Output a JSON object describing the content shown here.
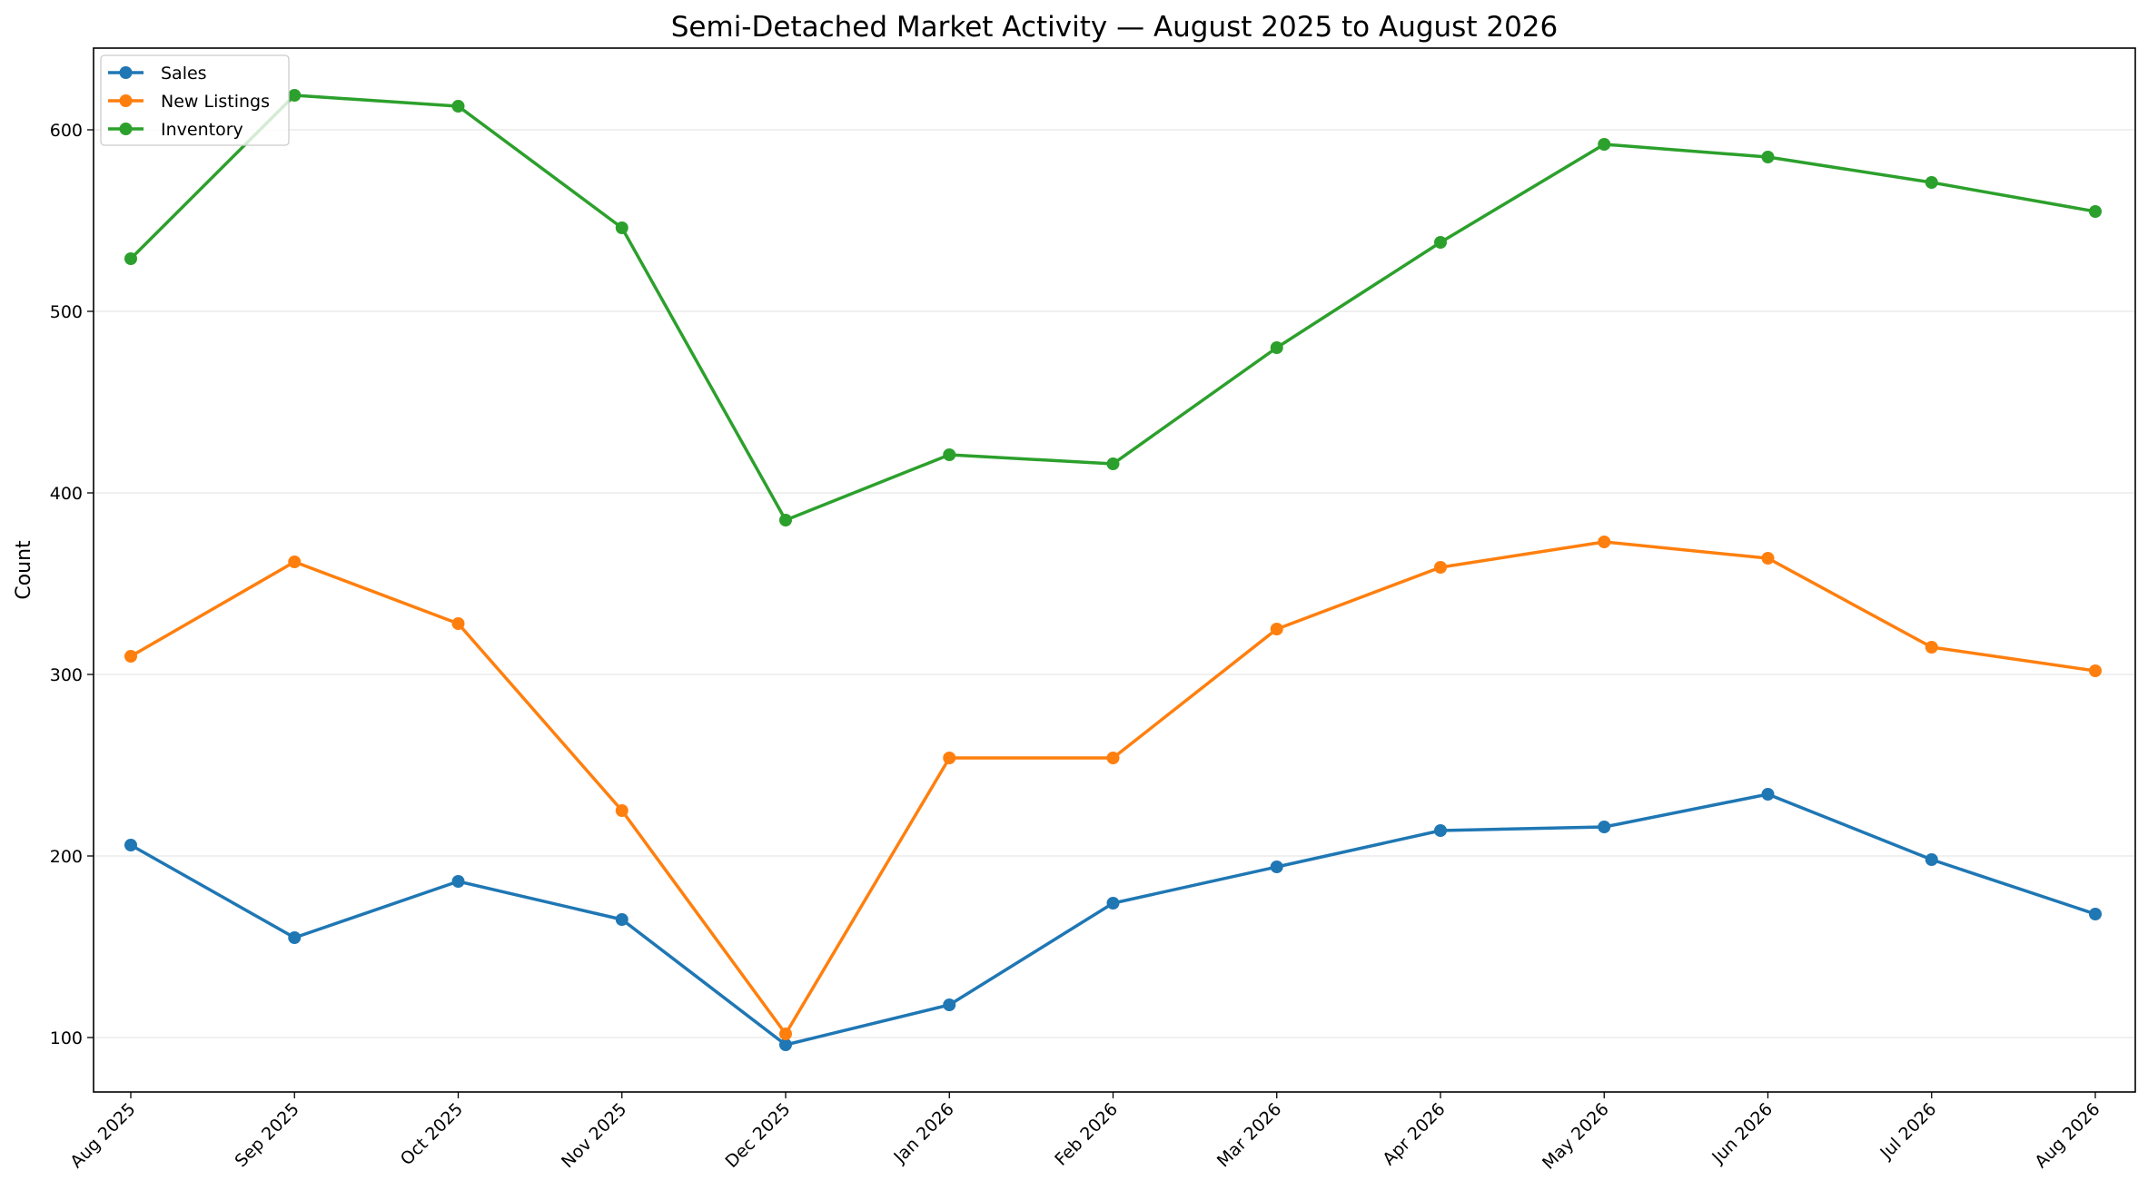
{
  "chart_data": {
    "type": "line",
    "title": "Semi-Detached Market Activity — August 2025 to August 2026",
    "xlabel": "",
    "ylabel": "Count",
    "categories": [
      "Aug 2025",
      "Sep 2025",
      "Oct 2025",
      "Nov 2025",
      "Dec 2025",
      "Jan 2026",
      "Feb 2026",
      "Mar 2026",
      "Apr 2026",
      "May 2026",
      "Jun 2026",
      "Jul 2026",
      "Aug 2026"
    ],
    "yticks": [
      100,
      200,
      300,
      400,
      500,
      600
    ],
    "ylim": [
      70,
      645
    ],
    "grid": "horizontal",
    "legend_position": "top-left",
    "series": [
      {
        "name": "Sales",
        "color": "#1f77b4",
        "values": [
          206,
          155,
          186,
          165,
          96,
          118,
          174,
          194,
          214,
          216,
          234,
          198,
          168
        ]
      },
      {
        "name": "New Listings",
        "color": "#ff7f0e",
        "values": [
          310,
          362,
          328,
          225,
          102,
          254,
          254,
          325,
          359,
          373,
          364,
          315,
          302
        ]
      },
      {
        "name": "Inventory",
        "color": "#2ca02c",
        "values": [
          529,
          619,
          613,
          546,
          385,
          421,
          416,
          480,
          538,
          592,
          585,
          571,
          555
        ]
      }
    ]
  }
}
